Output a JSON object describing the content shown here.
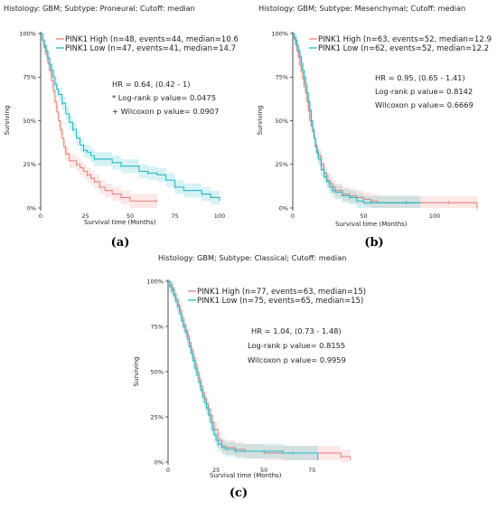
{
  "colors": {
    "high": "#E8817A",
    "low": "#24B9C2"
  },
  "chart_data": [
    {
      "type": "line",
      "label": "(a)",
      "title": "Histology: GBM; Subtype: Proneural; Cutoff: median",
      "xlabel": "Survival time (Months)",
      "ylabel": "Surviving",
      "xlim": [
        0,
        100
      ],
      "ylim": [
        0,
        100
      ],
      "x_ticks": [
        "0",
        "25",
        "50",
        "75",
        "100"
      ],
      "y_ticks": [
        "0%",
        "25%",
        "50%",
        "75%",
        "100%"
      ],
      "legend": [
        "PINK1 High (n=48, events=44, median=10.6",
        "PINK1 Low (n=47, events=41, median=14.7"
      ],
      "stats": [
        "HR = 0.64, (0.42 - 1)",
        "* Log-rank p value= 0.0475",
        "+ Wilcoxon p value= 0.0907"
      ],
      "series": [
        {
          "name": "PINK1 High",
          "x": [
            0,
            1,
            2,
            3,
            4,
            5,
            6,
            7,
            8,
            9,
            10,
            11,
            12,
            13,
            14,
            16,
            18,
            20,
            22,
            24,
            26,
            28,
            30,
            33,
            36,
            40,
            45,
            50,
            60,
            65
          ],
          "y": [
            100,
            96,
            92,
            88,
            83,
            79,
            73,
            67,
            61,
            55,
            50,
            45,
            40,
            35,
            31,
            27,
            27,
            25,
            23,
            21,
            19,
            17,
            15,
            12,
            10,
            8,
            6,
            4,
            4,
            4
          ]
        },
        {
          "name": "PINK1 Low",
          "x": [
            0,
            1,
            2,
            3,
            4,
            5,
            6,
            7,
            8,
            9,
            10,
            12,
            14,
            16,
            18,
            20,
            22,
            24,
            26,
            28,
            30,
            35,
            40,
            45,
            50,
            55,
            60,
            65,
            70,
            75,
            80,
            85,
            90,
            95,
            100
          ],
          "y": [
            100,
            96,
            93,
            90,
            86,
            82,
            79,
            75,
            71,
            68,
            65,
            60,
            54,
            49,
            45,
            40,
            36,
            33,
            32,
            30,
            28,
            28,
            26,
            24,
            24,
            21,
            20,
            19,
            16,
            12,
            10,
            10,
            8,
            6,
            4
          ]
        }
      ]
    },
    {
      "type": "line",
      "label": "(b)",
      "title": "Histology: GBM; Subtype: Mesenchymal; Cutoff: median",
      "xlabel": "Survival time (Months)",
      "ylabel": "Surviving",
      "xlim": [
        0,
        130
      ],
      "ylim": [
        0,
        100
      ],
      "x_ticks": [
        "0",
        "50",
        "100"
      ],
      "y_ticks": [
        "0%",
        "25%",
        "50%",
        "75%",
        "100%"
      ],
      "legend": [
        "PINK1 High (n=63, events=52, median=12.9",
        "PINK1 Low (n=62, events=52, median=12.2"
      ],
      "stats": [
        "HR = 0.95, (0.65 - 1.41)",
        "Log-rank p value= 0.8142",
        "Wilcoxon p value= 0.6669"
      ],
      "series": [
        {
          "name": "PINK1 High",
          "x": [
            0,
            1,
            2,
            3,
            4,
            5,
            6,
            7,
            8,
            9,
            10,
            11,
            12,
            13,
            14,
            15,
            16,
            17,
            18,
            20,
            22,
            24,
            26,
            28,
            30,
            35,
            40,
            45,
            50,
            55,
            60,
            70,
            80,
            90,
            100,
            110,
            120,
            125,
            130
          ],
          "y": [
            100,
            97,
            94,
            90,
            86,
            82,
            78,
            74,
            70,
            66,
            61,
            56,
            50,
            47,
            44,
            40,
            36,
            33,
            30,
            25,
            20,
            16,
            14,
            12,
            10,
            8,
            7,
            6,
            5,
            4,
            3,
            3,
            3,
            3,
            3,
            3,
            3,
            3,
            0
          ]
        },
        {
          "name": "PINK1 Low",
          "x": [
            0,
            1,
            2,
            3,
            4,
            5,
            6,
            7,
            8,
            9,
            10,
            11,
            12,
            13,
            14,
            15,
            16,
            17,
            18,
            20,
            22,
            24,
            26,
            28,
            30,
            35,
            40,
            45,
            50,
            55,
            60,
            70,
            80,
            90
          ],
          "y": [
            100,
            98,
            96,
            93,
            90,
            87,
            83,
            79,
            75,
            71,
            66,
            61,
            56,
            50,
            45,
            40,
            35,
            32,
            28,
            22,
            18,
            15,
            12,
            10,
            9,
            7,
            6,
            4,
            3,
            3,
            3,
            3,
            3,
            3
          ]
        }
      ]
    },
    {
      "type": "line",
      "label": "(c)",
      "title": "Histology: GBM; Subtype: Classical; Cutoff: median",
      "xlabel": "Survival time (Months)",
      "ylabel": "Surviving",
      "xlim": [
        0,
        97
      ],
      "ylim": [
        0,
        100
      ],
      "x_ticks": [
        "0",
        "25",
        "50",
        "75"
      ],
      "y_ticks": [
        "0%",
        "25%",
        "50%",
        "75%",
        "100%"
      ],
      "legend": [
        "PINK1 High (n=77, events=63, median=15)",
        "PINK1 Low (n=75, events=65, median=15)"
      ],
      "stats": [
        "HR = 1.04, (0.73 - 1.48)",
        "Log-rank p value= 0.8155",
        "Wilcoxon p value= 0.9959"
      ],
      "series": [
        {
          "name": "PINK1 High",
          "x": [
            0,
            1,
            2,
            3,
            4,
            5,
            6,
            7,
            8,
            9,
            10,
            11,
            12,
            13,
            14,
            15,
            16,
            17,
            18,
            19,
            20,
            21,
            22,
            23,
            24,
            26,
            28,
            30,
            35,
            40,
            45,
            50,
            60,
            70,
            80,
            90,
            95
          ],
          "y": [
            100,
            98,
            96,
            93,
            90,
            87,
            84,
            80,
            76,
            73,
            70,
            66,
            62,
            58,
            54,
            50,
            46,
            42,
            38,
            35,
            32,
            29,
            26,
            22,
            18,
            12,
            9,
            8,
            7,
            6,
            6,
            5,
            5,
            5,
            5,
            3,
            1
          ]
        },
        {
          "name": "PINK1 Low",
          "x": [
            0,
            1,
            2,
            3,
            4,
            5,
            6,
            7,
            8,
            9,
            10,
            11,
            12,
            13,
            14,
            15,
            16,
            17,
            18,
            19,
            20,
            21,
            22,
            23,
            24,
            25,
            26,
            28,
            30,
            35,
            40,
            45,
            50,
            55,
            60,
            65,
            70,
            78
          ],
          "y": [
            100,
            97,
            95,
            92,
            89,
            86,
            82,
            78,
            75,
            72,
            68,
            64,
            60,
            56,
            52,
            48,
            44,
            40,
            36,
            33,
            30,
            26,
            22,
            18,
            15,
            12,
            10,
            8,
            7,
            6,
            6,
            6,
            6,
            6,
            5,
            5,
            5,
            1
          ]
        }
      ]
    }
  ]
}
